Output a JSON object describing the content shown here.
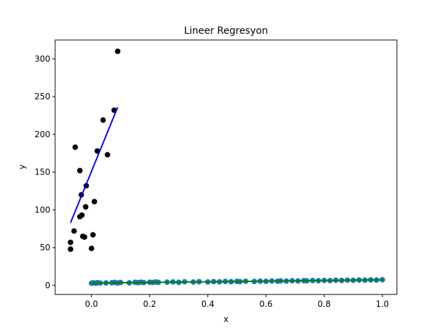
{
  "chart_data": {
    "type": "scatter",
    "title": "Lineer Regresyon",
    "xlabel": "x",
    "ylabel": "y",
    "xlim": [
      -0.125,
      1.05
    ],
    "ylim": [
      -12,
      325
    ],
    "xticks": [
      0.0,
      0.2,
      0.4,
      0.6,
      0.8,
      1.0
    ],
    "xtick_labels": [
      "0.0",
      "0.2",
      "0.4",
      "0.6",
      "0.8",
      "1.0"
    ],
    "yticks": [
      0,
      50,
      100,
      150,
      200,
      250,
      300
    ],
    "ytick_labels": [
      "0",
      "50",
      "100",
      "150",
      "200",
      "250",
      "300"
    ],
    "grid": false,
    "colors": {
      "black_points": "#000000",
      "blue_points": "#1f77b4",
      "blue_line": "#0000ff",
      "green_line": "#008000"
    },
    "series": [
      {
        "kind": "scatter",
        "color": "#000000",
        "points": [
          [
            -0.072,
            48
          ],
          [
            -0.072,
            57
          ],
          [
            -0.06,
            72
          ],
          [
            -0.056,
            183
          ],
          [
            -0.04,
            152
          ],
          [
            -0.04,
            91
          ],
          [
            -0.035,
            120
          ],
          [
            -0.033,
            93
          ],
          [
            -0.03,
            65
          ],
          [
            -0.024,
            64
          ],
          [
            -0.02,
            104
          ],
          [
            -0.018,
            132
          ],
          [
            0.0,
            49
          ],
          [
            0.005,
            67
          ],
          [
            0.01,
            111
          ],
          [
            0.02,
            178
          ],
          [
            0.04,
            219
          ],
          [
            0.055,
            173
          ],
          [
            0.078,
            232
          ],
          [
            0.09,
            310
          ]
        ]
      },
      {
        "kind": "line",
        "color": "#0000ff",
        "points": [
          [
            -0.072,
            83
          ],
          [
            0.09,
            236
          ]
        ]
      },
      {
        "kind": "scatter",
        "color": "#1f77b4",
        "points": [
          [
            0.0,
            3.0
          ],
          [
            0.007,
            3.4
          ],
          [
            0.015,
            2.8
          ],
          [
            0.02,
            3.6
          ],
          [
            0.03,
            3.1
          ],
          [
            0.05,
            3.3
          ],
          [
            0.07,
            3.5
          ],
          [
            0.08,
            4.0
          ],
          [
            0.09,
            3.2
          ],
          [
            0.1,
            3.9
          ],
          [
            0.13,
            3.4
          ],
          [
            0.15,
            4.1
          ],
          [
            0.16,
            3.6
          ],
          [
            0.17,
            4.3
          ],
          [
            0.18,
            3.8
          ],
          [
            0.2,
            4.2
          ],
          [
            0.21,
            3.9
          ],
          [
            0.22,
            4.5
          ],
          [
            0.23,
            4.0
          ],
          [
            0.26,
            4.3
          ],
          [
            0.28,
            4.6
          ],
          [
            0.3,
            4.1
          ],
          [
            0.32,
            4.8
          ],
          [
            0.35,
            4.4
          ],
          [
            0.37,
            4.9
          ],
          [
            0.4,
            4.6
          ],
          [
            0.42,
            5.0
          ],
          [
            0.44,
            4.7
          ],
          [
            0.46,
            5.2
          ],
          [
            0.48,
            4.9
          ],
          [
            0.5,
            5.3
          ],
          [
            0.51,
            5.0
          ],
          [
            0.53,
            5.5
          ],
          [
            0.56,
            5.2
          ],
          [
            0.58,
            5.6
          ],
          [
            0.6,
            5.3
          ],
          [
            0.62,
            5.8
          ],
          [
            0.64,
            5.5
          ],
          [
            0.65,
            6.0
          ],
          [
            0.67,
            5.7
          ],
          [
            0.69,
            6.1
          ],
          [
            0.71,
            5.9
          ],
          [
            0.73,
            6.3
          ],
          [
            0.74,
            6.0
          ],
          [
            0.76,
            6.4
          ],
          [
            0.78,
            6.2
          ],
          [
            0.8,
            6.6
          ],
          [
            0.82,
            6.3
          ],
          [
            0.84,
            6.8
          ],
          [
            0.86,
            6.5
          ],
          [
            0.88,
            6.9
          ],
          [
            0.9,
            6.7
          ],
          [
            0.92,
            7.1
          ],
          [
            0.94,
            6.9
          ],
          [
            0.96,
            7.3
          ],
          [
            0.98,
            7.1
          ],
          [
            1.0,
            7.5
          ]
        ]
      },
      {
        "kind": "line",
        "color": "#008000",
        "points": [
          [
            0.0,
            3.0
          ],
          [
            1.0,
            7.4
          ]
        ]
      }
    ]
  }
}
